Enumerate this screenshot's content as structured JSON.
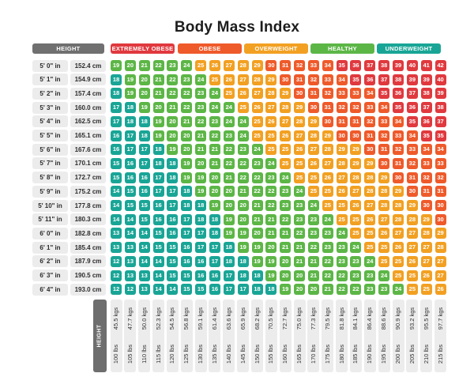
{
  "chart_data": {
    "type": "table",
    "title": "Body Mass Index",
    "row_header": "HEIGHT",
    "column_header": "HEIGHT",
    "categories": [
      {
        "label": "EXTREMELY OBESE",
        "color": "#e0393e"
      },
      {
        "label": "OBESE",
        "color": "#ef5a2a"
      },
      {
        "label": "OVERWEIGHT",
        "color": "#f2a022"
      },
      {
        "label": "HEALTHY",
        "color": "#5cb646"
      },
      {
        "label": "UNDERWEIGHT",
        "color": "#19a596"
      }
    ],
    "heights": [
      {
        "ft": "5' 0\" in",
        "cm": "152.4 cm"
      },
      {
        "ft": "5' 1\" in",
        "cm": "154.9 cm"
      },
      {
        "ft": "5' 2\" in",
        "cm": "157.4 cm"
      },
      {
        "ft": "5' 3\" in",
        "cm": "160.0 cm"
      },
      {
        "ft": "5' 4\" in",
        "cm": "162.5 cm"
      },
      {
        "ft": "5' 5\" in",
        "cm": "165.1 cm"
      },
      {
        "ft": "5' 6\" in",
        "cm": "167.6 cm"
      },
      {
        "ft": "5' 7\" in",
        "cm": "170.1 cm"
      },
      {
        "ft": "5' 8\" in",
        "cm": "172.7 cm"
      },
      {
        "ft": "5' 9\" in",
        "cm": "175.2 cm"
      },
      {
        "ft": "5' 10\" in",
        "cm": "177.8 cm"
      },
      {
        "ft": "5' 11\" in",
        "cm": "180.3 cm"
      },
      {
        "ft": "6' 0\" in",
        "cm": "182.8 cm"
      },
      {
        "ft": "6' 1\" in",
        "cm": "185.4 cm"
      },
      {
        "ft": "6' 2\" in",
        "cm": "187.9 cm"
      },
      {
        "ft": "6' 3\" in",
        "cm": "190.5 cm"
      },
      {
        "ft": "6' 4\" in",
        "cm": "193.0 cm"
      }
    ],
    "weights": [
      {
        "kg": "45.5 kgs",
        "lbs": "100 lbs"
      },
      {
        "kg": "47.7 kgs",
        "lbs": "105 lbs"
      },
      {
        "kg": "50.0 kgs",
        "lbs": "110 lbs"
      },
      {
        "kg": "52.3 kgs",
        "lbs": "115 lbs"
      },
      {
        "kg": "54.5 kgs",
        "lbs": "120 lbs"
      },
      {
        "kg": "56.8 kgs",
        "lbs": "125 lbs"
      },
      {
        "kg": "59.1 kgs",
        "lbs": "130 lbs"
      },
      {
        "kg": "61.4 kgs",
        "lbs": "135 lbs"
      },
      {
        "kg": "63.6 kgs",
        "lbs": "140 lbs"
      },
      {
        "kg": "65.9 kgs",
        "lbs": "145 lbs"
      },
      {
        "kg": "68.2 kgs",
        "lbs": "150 lbs"
      },
      {
        "kg": "70.5 kgs",
        "lbs": "155 lbs"
      },
      {
        "kg": "72.7 kgs",
        "lbs": "160 lbs"
      },
      {
        "kg": "75.0 kgs",
        "lbs": "165 lbs"
      },
      {
        "kg": "77.3 kgs",
        "lbs": "170 lbs"
      },
      {
        "kg": "79.5 kgs",
        "lbs": "175 lbs"
      },
      {
        "kg": "81.8 kgs",
        "lbs": "180 lbs"
      },
      {
        "kg": "84.1 kgs",
        "lbs": "185 lbs"
      },
      {
        "kg": "86.4 kgs",
        "lbs": "190 lbs"
      },
      {
        "kg": "88.6 kgs",
        "lbs": "195 lbs"
      },
      {
        "kg": "90.9 kgs",
        "lbs": "200 lbs"
      },
      {
        "kg": "93.2 kgs",
        "lbs": "205 lbs"
      },
      {
        "kg": "95.5 kgs",
        "lbs": "210 lbs"
      },
      {
        "kg": "97.7 kgs",
        "lbs": "215 lbs"
      }
    ],
    "values": [
      [
        19,
        20,
        21,
        22,
        23,
        24,
        25,
        26,
        27,
        28,
        29,
        30,
        31,
        32,
        33,
        34,
        35,
        36,
        37,
        38,
        39,
        40,
        41,
        42
      ],
      [
        18,
        19,
        20,
        21,
        22,
        23,
        24,
        25,
        26,
        27,
        28,
        29,
        30,
        31,
        32,
        33,
        34,
        35,
        36,
        37,
        38,
        39,
        39,
        40
      ],
      [
        18,
        19,
        20,
        21,
        22,
        22,
        23,
        24,
        25,
        26,
        27,
        28,
        29,
        30,
        31,
        32,
        33,
        33,
        34,
        35,
        36,
        37,
        38,
        39
      ],
      [
        17,
        18,
        19,
        20,
        21,
        22,
        23,
        24,
        24,
        25,
        26,
        27,
        28,
        29,
        30,
        31,
        32,
        32,
        33,
        34,
        35,
        36,
        37,
        38
      ],
      [
        17,
        18,
        18,
        19,
        20,
        21,
        22,
        23,
        24,
        24,
        25,
        26,
        27,
        28,
        29,
        30,
        31,
        31,
        32,
        33,
        34,
        35,
        36,
        37
      ],
      [
        16,
        17,
        18,
        19,
        20,
        20,
        21,
        22,
        23,
        24,
        25,
        25,
        26,
        27,
        28,
        29,
        30,
        30,
        31,
        32,
        33,
        34,
        35,
        35
      ],
      [
        16,
        17,
        17,
        18,
        19,
        20,
        21,
        21,
        22,
        23,
        24,
        25,
        25,
        26,
        27,
        28,
        29,
        29,
        30,
        31,
        32,
        33,
        34,
        34
      ],
      [
        15,
        16,
        17,
        18,
        18,
        19,
        20,
        21,
        22,
        22,
        23,
        24,
        25,
        25,
        26,
        27,
        28,
        29,
        29,
        30,
        31,
        32,
        33,
        33
      ],
      [
        15,
        16,
        16,
        17,
        18,
        19,
        19,
        20,
        21,
        22,
        22,
        23,
        24,
        25,
        25,
        26,
        27,
        28,
        28,
        29,
        30,
        31,
        32,
        32
      ],
      [
        14,
        15,
        16,
        17,
        17,
        18,
        19,
        20,
        20,
        21,
        22,
        22,
        23,
        24,
        25,
        25,
        26,
        27,
        28,
        28,
        29,
        30,
        31,
        31
      ],
      [
        14,
        15,
        15,
        16,
        17,
        18,
        18,
        19,
        20,
        20,
        21,
        22,
        23,
        23,
        24,
        25,
        25,
        26,
        27,
        28,
        28,
        29,
        30,
        30
      ],
      [
        14,
        14,
        15,
        16,
        16,
        17,
        18,
        18,
        19,
        20,
        21,
        21,
        22,
        23,
        23,
        24,
        25,
        25,
        26,
        27,
        28,
        28,
        29,
        30
      ],
      [
        13,
        14,
        14,
        15,
        16,
        17,
        17,
        18,
        19,
        19,
        20,
        21,
        21,
        22,
        23,
        23,
        24,
        25,
        25,
        26,
        27,
        27,
        28,
        29
      ],
      [
        13,
        13,
        14,
        15,
        15,
        16,
        17,
        17,
        18,
        19,
        19,
        20,
        21,
        21,
        22,
        23,
        23,
        24,
        25,
        25,
        26,
        27,
        27,
        28
      ],
      [
        12,
        13,
        14,
        14,
        15,
        16,
        16,
        17,
        18,
        18,
        19,
        19,
        20,
        21,
        21,
        22,
        23,
        23,
        24,
        25,
        25,
        26,
        27,
        27
      ],
      [
        12,
        13,
        13,
        14,
        15,
        15,
        16,
        16,
        17,
        18,
        18,
        19,
        20,
        20,
        21,
        22,
        22,
        23,
        23,
        24,
        25,
        25,
        26,
        27
      ],
      [
        12,
        12,
        13,
        14,
        14,
        15,
        15,
        16,
        17,
        17,
        18,
        18,
        19,
        20,
        20,
        21,
        22,
        22,
        23,
        23,
        24,
        25,
        25,
        26
      ]
    ],
    "bands": [
      {
        "category": "UNDERWEIGHT",
        "max": 18
      },
      {
        "category": "HEALTHY",
        "max": 24
      },
      {
        "category": "OVERWEIGHT",
        "max": 29
      },
      {
        "category": "OBESE",
        "max": 34
      },
      {
        "category": "EXTREMELY OBESE",
        "max": 99
      }
    ]
  }
}
